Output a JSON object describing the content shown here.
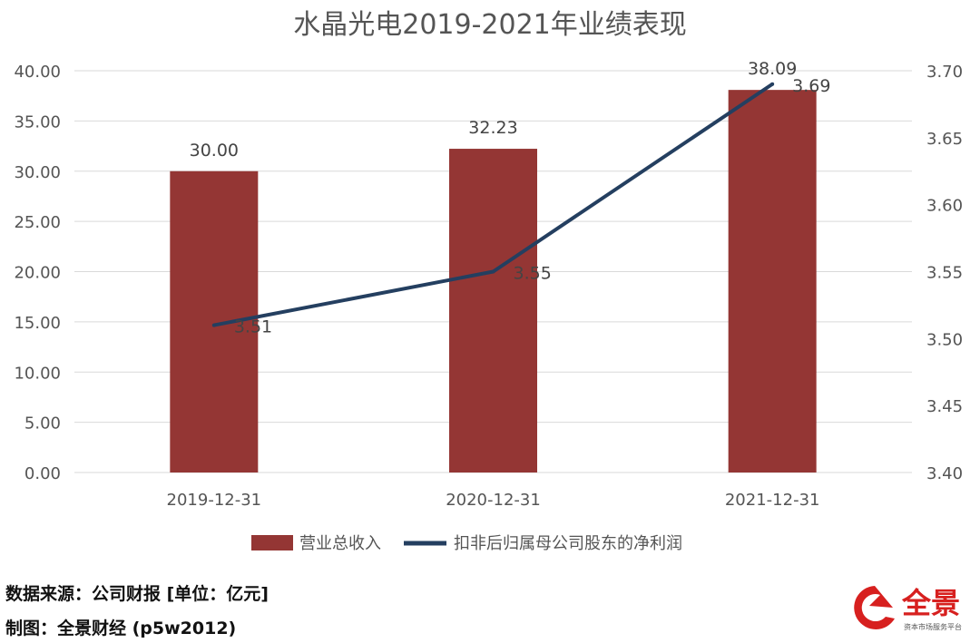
{
  "chart_data": {
    "type": "bar",
    "title": "水晶光电2019-2021年业绩表现",
    "categories": [
      "2019-12-31",
      "2020-12-31",
      "2021-12-31"
    ],
    "series": [
      {
        "name": "营业总收入",
        "type": "bar",
        "axis": "left",
        "values": [
          30.0,
          32.23,
          38.09
        ],
        "labels": [
          "30.00",
          "32.23",
          "38.09"
        ],
        "color": "#943634"
      },
      {
        "name": "扣非后归属母公司股东的净利润",
        "type": "line",
        "axis": "right",
        "values": [
          3.51,
          3.55,
          3.69
        ],
        "labels": [
          "3.51",
          "3.55",
          "3.69"
        ],
        "color": "#243f60"
      }
    ],
    "y_left": {
      "min": 0,
      "max": 40,
      "step": 5,
      "ticks": [
        "0.00",
        "5.00",
        "10.00",
        "15.00",
        "20.00",
        "25.00",
        "30.00",
        "35.00",
        "40.00"
      ]
    },
    "y_right": {
      "min": 3.4,
      "max": 3.7,
      "step": 0.05,
      "ticks": [
        "3.40",
        "3.45",
        "3.50",
        "3.55",
        "3.60",
        "3.65",
        "3.70"
      ]
    },
    "grid": true,
    "legend_position": "bottom"
  },
  "footer": {
    "source": "数据来源：公司财报 [单位：亿元]",
    "maker": "制图：全景财经 (p5w2012)"
  },
  "logo": {
    "name": "全景",
    "subtitle": "资本市场服务平台",
    "color": "#d7201f"
  }
}
